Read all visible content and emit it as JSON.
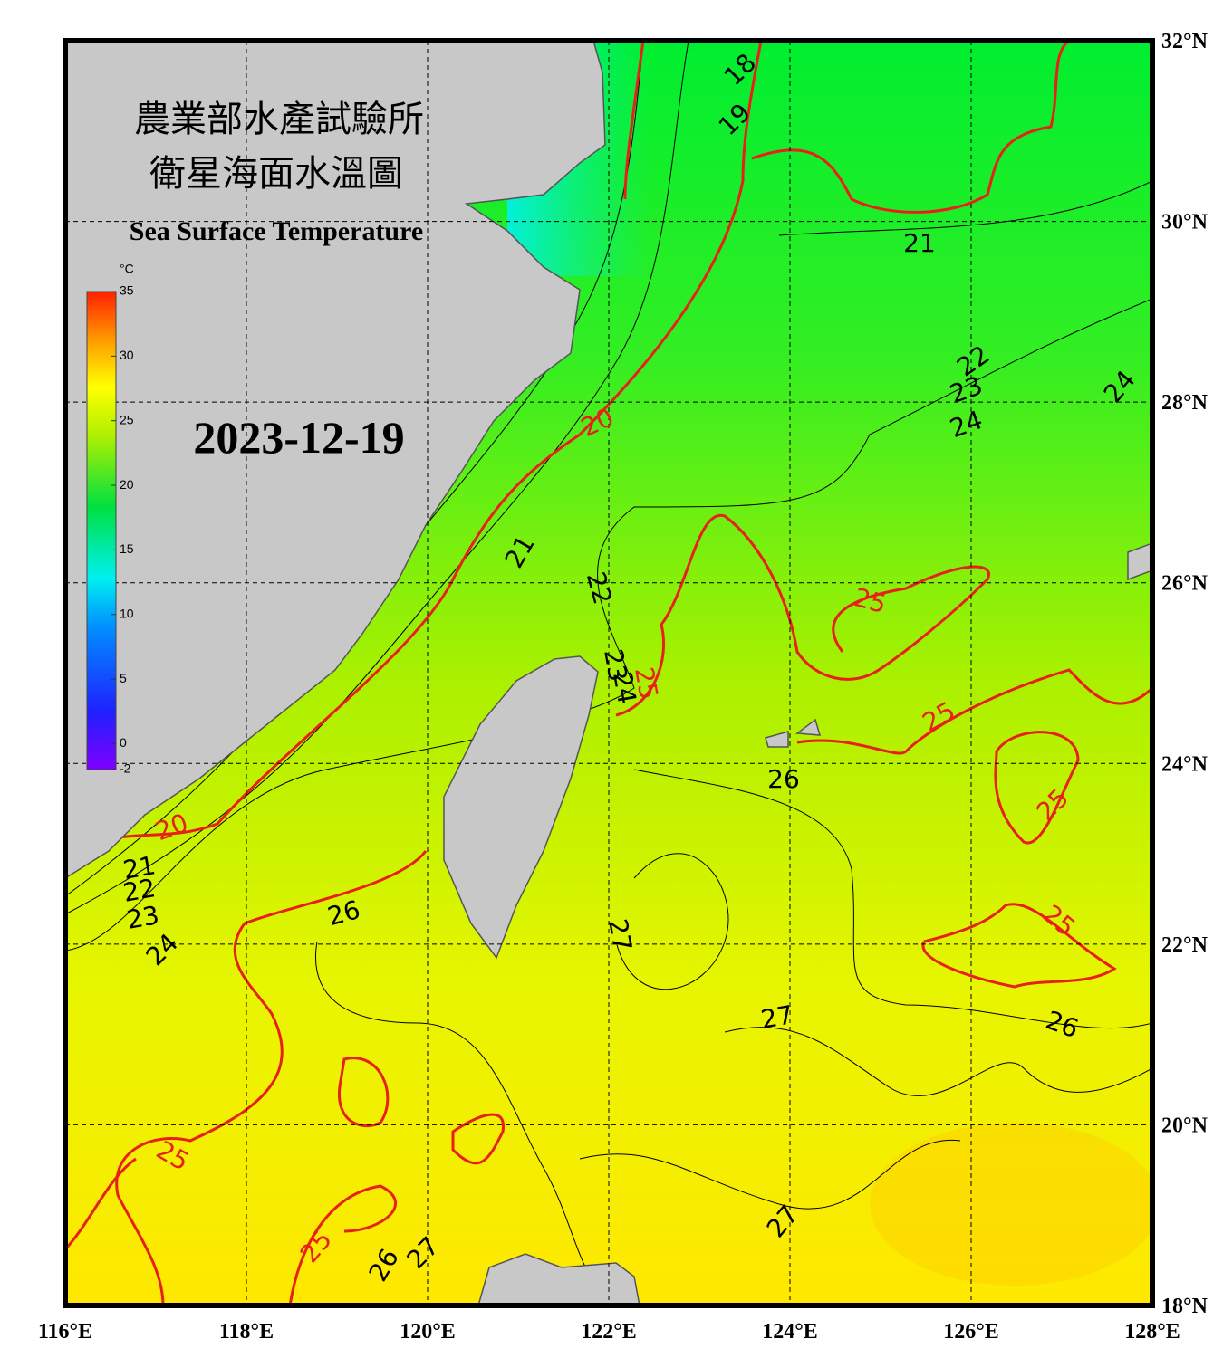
{
  "map": {
    "title_zh_1": "農業部水產試驗所",
    "title_zh_2": "衛星海面水溫圖",
    "title_en": "Sea Surface Temperature",
    "date": "2023-12-19",
    "colorbar": {
      "unit": "°C",
      "range": [
        -2,
        35
      ],
      "ticks": [
        35,
        30,
        25,
        20,
        15,
        10,
        5,
        0,
        -2
      ]
    },
    "xlim": [
      116,
      128
    ],
    "ylim": [
      18,
      32
    ],
    "xticks": [
      {
        "value": 116,
        "label": "116°E"
      },
      {
        "value": 118,
        "label": "118°E"
      },
      {
        "value": 120,
        "label": "120°E"
      },
      {
        "value": 122,
        "label": "122°E"
      },
      {
        "value": 124,
        "label": "124°E"
      },
      {
        "value": 126,
        "label": "126°E"
      },
      {
        "value": 128,
        "label": "128°E"
      }
    ],
    "yticks": [
      {
        "value": 18,
        "label": "18°N"
      },
      {
        "value": 20,
        "label": "20°N"
      },
      {
        "value": 22,
        "label": "22°N"
      },
      {
        "value": 24,
        "label": "24°N"
      },
      {
        "value": 26,
        "label": "26°N"
      },
      {
        "value": 28,
        "label": "28°N"
      },
      {
        "value": 30,
        "label": "30°N"
      },
      {
        "value": 32,
        "label": "32°N"
      }
    ],
    "contour_labels": [
      18,
      19,
      21,
      22,
      23,
      24,
      24,
      20,
      21,
      22,
      23,
      24,
      25,
      25,
      25,
      25,
      26,
      25,
      26,
      27,
      27,
      26,
      25,
      25,
      27,
      26,
      27,
      20,
      21,
      22,
      23,
      24
    ]
  }
}
